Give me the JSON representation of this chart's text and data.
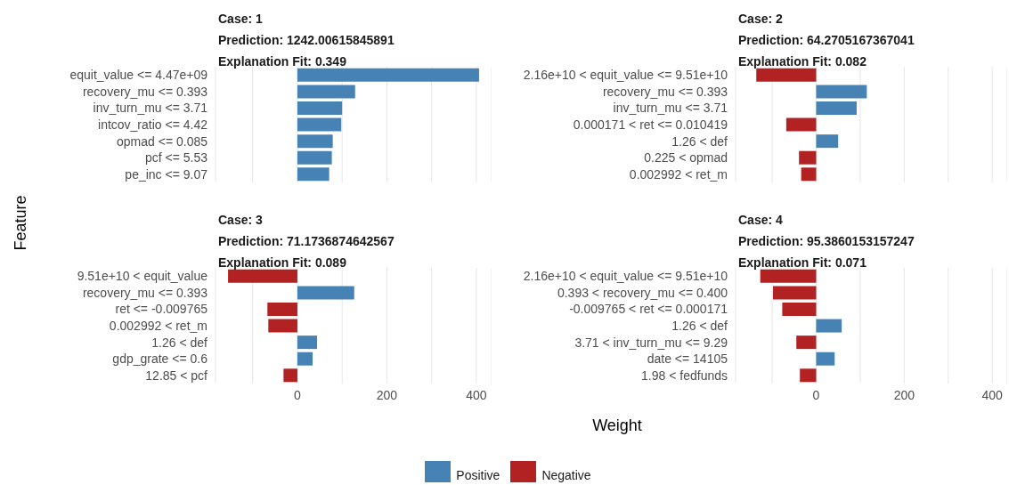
{
  "chart_data": [
    {
      "type": "bar",
      "orientation": "horizontal",
      "stacked": true,
      "title": "Case: 1",
      "subtitle": "Prediction: 1242.00615845891",
      "annotations": [
        "Explanation Fit: 0.349"
      ],
      "ylabel": "Feature",
      "legend": "bottom",
      "grid": "x",
      "tick_labels": "y",
      "categories": [
        "equit_value <= 4.47e+09",
        "recovery_mu <= 0.393",
        "inv_turn_mu <= 3.71",
        "intcov_ratio <= 4.42",
        "opmad <= 0.085",
        "pcf <= 5.53",
        "pe_inc <= 9.07"
      ],
      "series": [
        {
          "name": "Positive",
          "color": "#4682b4",
          "values": [
            406,
            129,
            100,
            98,
            79,
            77,
            71
          ]
        },
        {
          "name": "Negative",
          "color": "#b22222",
          "values": [
            null,
            null,
            null,
            null,
            null,
            null,
            null
          ]
        }
      ],
      "xlim": [
        -183,
        434
      ],
      "xticks": [
        {
          "value": -100,
          "label": null
        },
        0,
        {
          "value": 100,
          "label": null
        },
        200,
        {
          "value": 300,
          "label": null
        },
        400
      ]
    },
    {
      "type": "bar",
      "orientation": "horizontal",
      "stacked": true,
      "title": "Case: 2",
      "subtitle": "Prediction: 64.2705167367041",
      "annotations": [
        "Explanation Fit: 0.082"
      ],
      "grid": "x",
      "tick_labels": "y",
      "categories": [
        "2.16e+10 < equit_value <= 9.51e+10",
        "recovery_mu <= 0.393",
        "inv_turn_mu <= 3.71",
        "0.000171 < ret <= 0.010419",
        "1.26 < def",
        "0.225 < opmad",
        "0.002992 < ret_m"
      ],
      "series": [
        {
          "color": "#4682b4",
          "values": [
            null,
            115,
            92,
            null,
            50,
            null,
            null
          ]
        },
        {
          "color": "#b22222",
          "values": [
            -136,
            null,
            null,
            -68,
            null,
            -39,
            -34
          ]
        }
      ],
      "xlim": [
        -183,
        434
      ],
      "xticks": [
        {
          "value": -100,
          "label": null
        },
        0,
        {
          "value": 100,
          "label": null
        },
        200,
        {
          "value": 300,
          "label": null
        },
        400
      ]
    },
    {
      "type": "bar",
      "orientation": "horizontal",
      "stacked": true,
      "title": "Case: 3",
      "subtitle": "Prediction: 71.1736874642567",
      "annotations": [
        "Explanation Fit: 0.089"
      ],
      "grid": "x",
      "categories": [
        "9.51e+10 < equit_value",
        "recovery_mu <= 0.393",
        "ret <= -0.009765",
        "0.002992 < ret_m",
        "1.26 < def",
        "gdp_grate <= 0.6",
        "12.85 < pcf"
      ],
      "series": [
        {
          "color": "#4682b4",
          "values": [
            null,
            127,
            null,
            null,
            44,
            34,
            null
          ]
        },
        {
          "color": "#b22222",
          "values": [
            -155,
            null,
            -67,
            -65,
            null,
            null,
            -31
          ]
        }
      ],
      "xlim": [
        -183,
        434
      ],
      "xticks": [
        {
          "value": -100,
          "label": null
        },
        0,
        {
          "value": 100,
          "label": null
        },
        200,
        {
          "value": 300,
          "label": null
        },
        400
      ]
    },
    {
      "type": "bar",
      "orientation": "horizontal",
      "stacked": true,
      "title": "Case: 4",
      "subtitle": "Prediction: 95.3860153157247",
      "annotations": [
        "Explanation Fit: 0.071"
      ],
      "xlabel": "Weight",
      "grid": "x",
      "categories": [
        "2.16e+10 < equit_value <= 9.51e+10",
        "0.393 < recovery_mu <= 0.400",
        "-0.009765 < ret <= 0.000171",
        "1.26 < def",
        "3.71 < inv_turn_mu <= 9.29",
        "date <= 14105",
        "1.98 < fedfunds"
      ],
      "series": [
        {
          "color": "#4682b4",
          "values": [
            null,
            null,
            null,
            58,
            null,
            42,
            null
          ]
        },
        {
          "color": "#b22222",
          "values": [
            -127,
            -98,
            -77,
            null,
            -45,
            null,
            -37
          ]
        }
      ],
      "xlim": [
        -183,
        434
      ],
      "xticks": [
        {
          "value": -100,
          "label": null
        },
        0,
        {
          "value": 100,
          "label": null
        },
        200,
        {
          "value": 300,
          "label": null
        },
        400
      ]
    }
  ]
}
